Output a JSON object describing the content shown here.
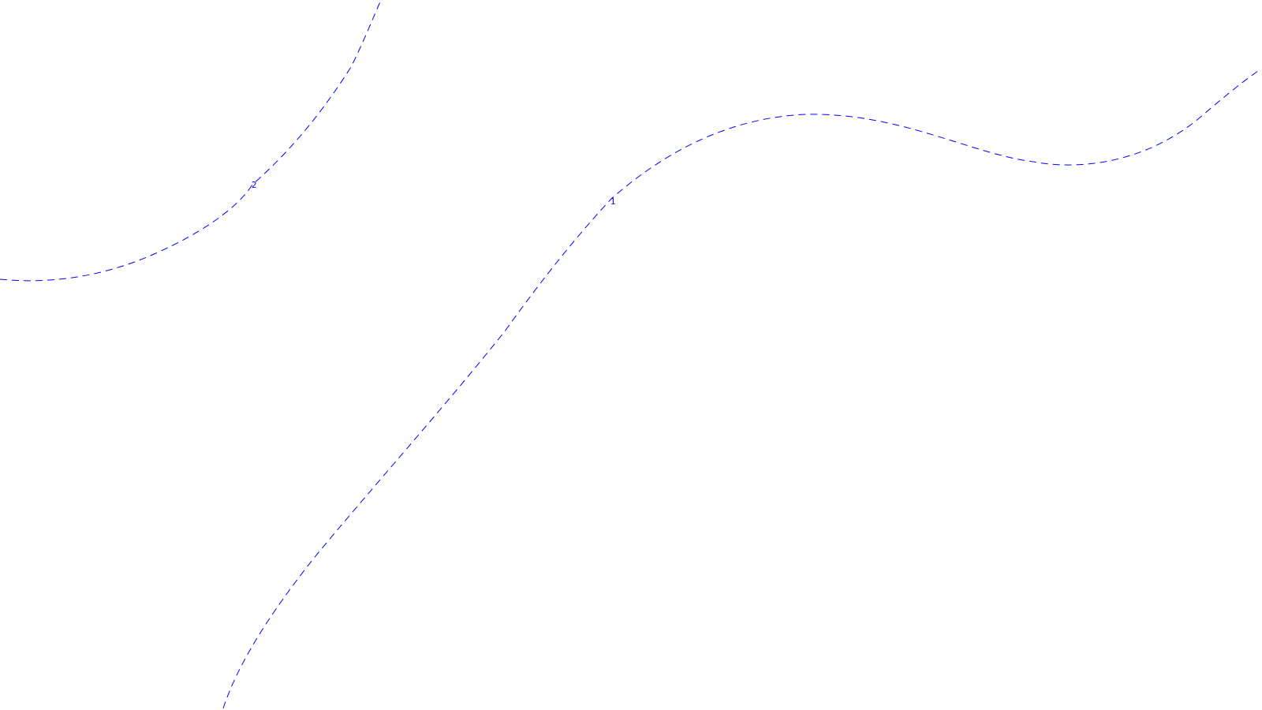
{
  "map": {
    "background": "#ffffff",
    "line_color": "#0000ff",
    "line_style": "dashed",
    "contours": [
      {
        "id": "contour-1",
        "label": "1"
      },
      {
        "id": "contour-2",
        "label": "2"
      }
    ]
  }
}
